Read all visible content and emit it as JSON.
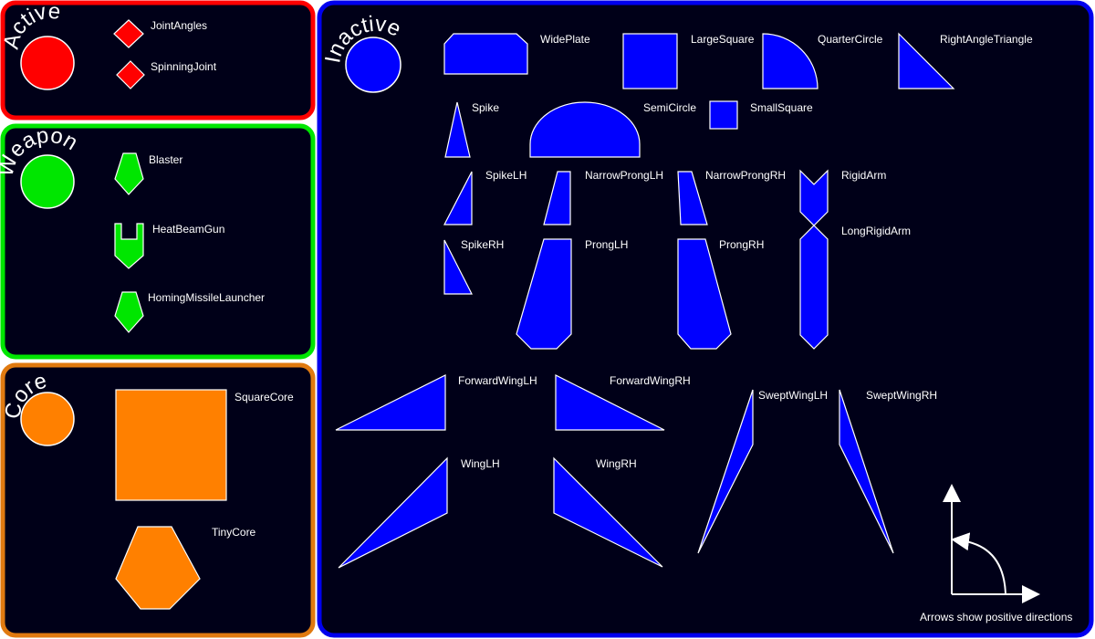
{
  "colors": {
    "background": "#000018",
    "active": "#ff0000",
    "weapon": "#00e600",
    "core": "#ff8000",
    "inactive": "#0000ff",
    "outline": "#ffffff"
  },
  "panels": {
    "active": {
      "title": "Active",
      "items": [
        "JointAngles",
        "SpinningJoint"
      ]
    },
    "weapon": {
      "title": "Weapon",
      "items": [
        "Blaster",
        "HeatBeamGun",
        "HomingMissileLauncher"
      ]
    },
    "core": {
      "title": "Core",
      "items": [
        "SquareCore",
        "TinyCore"
      ]
    },
    "inactive": {
      "title": "Inactive",
      "items": [
        "WidePlate",
        "LargeSquare",
        "QuarterCircle",
        "RightAngleTriangle",
        "Spike",
        "SemiCircle",
        "SmallSquare",
        "SpikeLH",
        "NarrowProngLH",
        "NarrowProngRH",
        "RigidArm",
        "SpikeRH",
        "ProngLH",
        "ProngRH",
        "LongRigidArm",
        "ForwardWingLH",
        "ForwardWingRH",
        "SweptWingLH",
        "SweptWingRH",
        "WingLH",
        "WingRH"
      ],
      "note": "Arrows show positive directions"
    }
  }
}
